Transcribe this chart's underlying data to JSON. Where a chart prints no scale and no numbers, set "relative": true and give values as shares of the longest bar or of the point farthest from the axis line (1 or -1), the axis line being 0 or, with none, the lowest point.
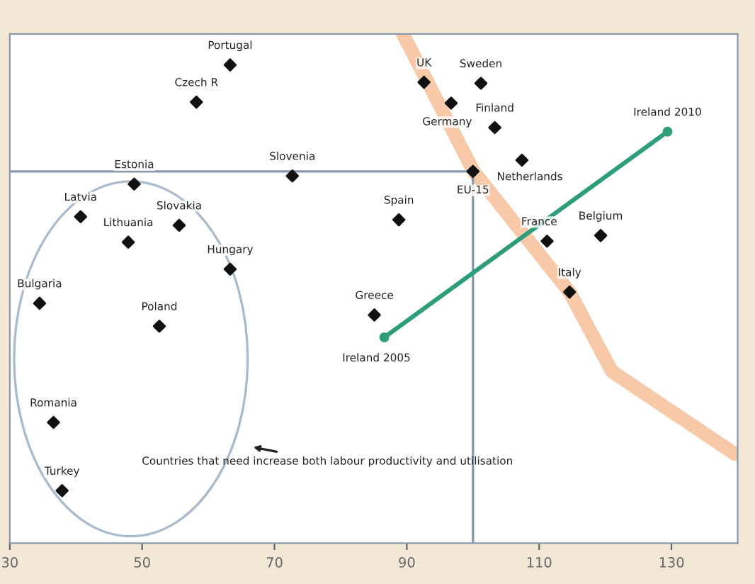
{
  "chart_data": {
    "type": "scatter",
    "relative": true,
    "tick_labels": "x",
    "grid": false,
    "legend": false,
    "marker": "diamond",
    "xlim": [
      30,
      140
    ],
    "xticks": [
      30,
      50,
      70,
      90,
      110,
      130
    ],
    "series": [
      {
        "color": "#111111",
        "x": [
          63.3,
          58.2,
          72.7,
          48.8,
          40.7,
          47.9,
          55.6,
          63.3,
          34.5,
          52.6,
          36.6,
          37.9,
          85.1,
          88.8,
          100,
          92.6,
          101.2,
          96.7,
          103.3,
          107.4,
          111.2,
          119.3,
          114.6
        ],
        "values": [
          0.939,
          0.866,
          0.721,
          0.705,
          0.641,
          0.591,
          0.624,
          0.538,
          0.471,
          0.426,
          0.237,
          0.103,
          0.448,
          0.635,
          0.73,
          0.905,
          0.903,
          0.864,
          0.816,
          0.752,
          0.593,
          0.604,
          0.493
        ]
      },
      {
        "type": "line",
        "color": "#2e9e7a",
        "x": [
          86.6,
          129.4
        ],
        "values": [
          0.404,
          0.808
        ],
        "marker": "circle"
      },
      {
        "type": "line",
        "color": "#f7c9a8",
        "x": [
          89.4,
          100.1,
          114.6,
          121.0,
          139.6
        ],
        "values": [
          1.0,
          0.73,
          0.493,
          0.337,
          0.175
        ],
        "marker": "none"
      }
    ],
    "ref_lines": [
      {
        "axis": "x",
        "value": 100,
        "color": "#8899aa"
      },
      {
        "axis": "y",
        "value": 0.73,
        "color": "#8899aa"
      }
    ],
    "annotations": [
      {
        "text": "Portugal",
        "x": 63.3,
        "y": 0.939
      },
      {
        "text": "Czech R",
        "x": 58.2,
        "y": 0.866
      },
      {
        "text": "Slovenia",
        "x": 72.7,
        "y": 0.721
      },
      {
        "text": "Estonia",
        "x": 48.8,
        "y": 0.705
      },
      {
        "text": "Latvia",
        "x": 40.7,
        "y": 0.641
      },
      {
        "text": "Lithuania",
        "x": 47.9,
        "y": 0.591
      },
      {
        "text": "Slovakia",
        "x": 55.6,
        "y": 0.624
      },
      {
        "text": "Hungary",
        "x": 63.3,
        "y": 0.538
      },
      {
        "text": "Bulgaria",
        "x": 34.5,
        "y": 0.471
      },
      {
        "text": "Poland",
        "x": 52.6,
        "y": 0.426
      },
      {
        "text": "Romania",
        "x": 36.6,
        "y": 0.237
      },
      {
        "text": "Turkey",
        "x": 37.9,
        "y": 0.103
      },
      {
        "text": "Greece",
        "x": 85.1,
        "y": 0.448
      },
      {
        "text": "Spain",
        "x": 88.8,
        "y": 0.635
      },
      {
        "text": "EU-15",
        "x": 100,
        "y": 0.73
      },
      {
        "text": "UK",
        "x": 92.6,
        "y": 0.905
      },
      {
        "text": "Sweden",
        "x": 101.2,
        "y": 0.903
      },
      {
        "text": "Germany",
        "x": 96.7,
        "y": 0.864
      },
      {
        "text": "Finland",
        "x": 103.3,
        "y": 0.816
      },
      {
        "text": "Netherlands",
        "x": 107.4,
        "y": 0.752
      },
      {
        "text": "France",
        "x": 111.2,
        "y": 0.593
      },
      {
        "text": "Belgium",
        "x": 119.3,
        "y": 0.604
      },
      {
        "text": "Italy",
        "x": 114.6,
        "y": 0.493
      },
      {
        "text": "Ireland 2005",
        "x": 86.6,
        "y": 0.404
      },
      {
        "text": "Ireland 2010",
        "x": 129.4,
        "y": 0.808
      },
      "Countries that need increase both labour productivity and utilisation"
    ]
  }
}
